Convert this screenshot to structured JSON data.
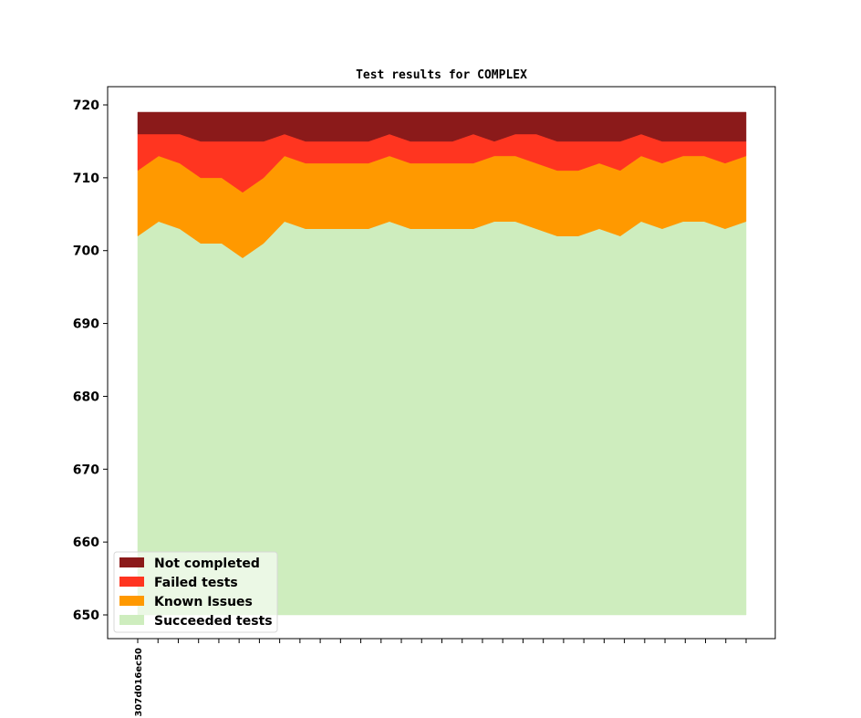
{
  "chart_data": {
    "type": "area",
    "stacked": true,
    "title": "Test results for COMPLEX",
    "xlabel": "",
    "ylabel": "",
    "ylim": [
      650,
      720
    ],
    "ybase": 650,
    "yticks": [
      650,
      660,
      670,
      680,
      690,
      700,
      710,
      720
    ],
    "x_tick_count": 31,
    "x_tick_labels": [
      "307d016ec50"
    ],
    "grid": false,
    "legend_position": "lower-left",
    "colors": {
      "not_completed": "#8b1a1a",
      "failed": "#ff3520",
      "known_issues": "#ff9900",
      "succeeded": "#ceedbe"
    },
    "legend": [
      {
        "label": "Not completed",
        "color": "#8b1a1a"
      },
      {
        "label": "Failed tests",
        "color": "#ff3520"
      },
      {
        "label": "Known Issues",
        "color": "#ff9900"
      },
      {
        "label": "Succeeded tests",
        "color": "#ceedbe"
      }
    ],
    "series": [
      {
        "name": "Succeeded tests",
        "color": "#ceedbe",
        "cumulative": [
          702,
          704,
          703,
          701,
          701,
          699,
          701,
          704,
          703,
          703,
          703,
          703,
          704,
          703,
          703,
          703,
          703,
          704,
          704,
          703,
          702,
          702,
          703,
          702,
          704,
          703,
          704,
          704,
          703,
          704
        ]
      },
      {
        "name": "Known Issues",
        "color": "#ff9900",
        "cumulative": [
          711,
          713,
          712,
          710,
          710,
          708,
          710,
          713,
          712,
          712,
          712,
          712,
          713,
          712,
          712,
          712,
          712,
          713,
          713,
          712,
          711,
          711,
          712,
          711,
          713,
          712,
          713,
          713,
          712,
          713
        ]
      },
      {
        "name": "Failed tests",
        "color": "#ff3520",
        "cumulative": [
          716,
          716,
          716,
          715,
          715,
          715,
          715,
          716,
          715,
          715,
          715,
          715,
          716,
          715,
          715,
          715,
          716,
          715,
          716,
          716,
          715,
          715,
          715,
          715,
          716,
          715,
          715,
          715,
          715,
          715
        ]
      },
      {
        "name": "Not completed",
        "color": "#8b1a1a",
        "cumulative": [
          719,
          719,
          719,
          719,
          719,
          719,
          719,
          719,
          719,
          719,
          719,
          719,
          719,
          719,
          719,
          719,
          719,
          719,
          719,
          719,
          719,
          719,
          719,
          719,
          719,
          719,
          719,
          719,
          719,
          719
        ]
      }
    ]
  }
}
